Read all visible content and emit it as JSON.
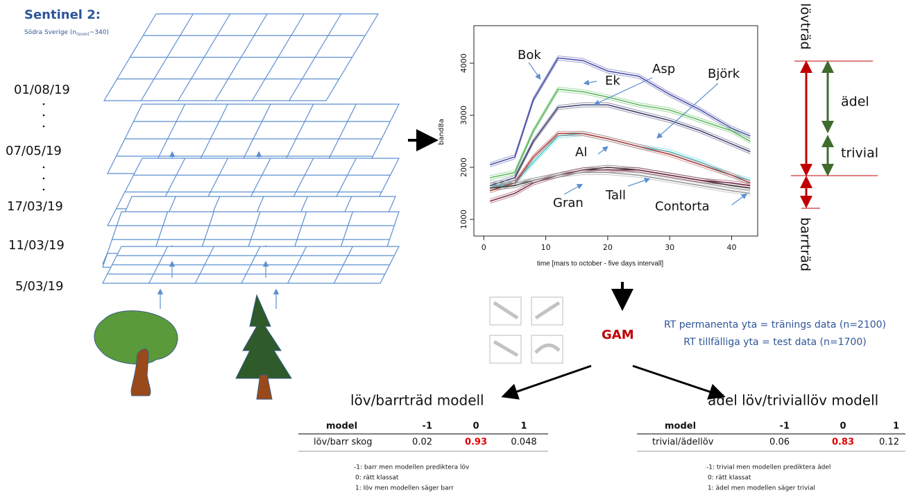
{
  "sentinel": {
    "title": "Sentinel 2:",
    "subtitle": "Södra Sverige  (n",
    "subscript": "(scen)",
    "tail": "~340)"
  },
  "dates": [
    "01/08/19",
    "07/05/19",
    "17/03/19",
    "11/03/19",
    "5/03/19"
  ],
  "chart_data": {
    "type": "line",
    "x_label": "time [mars to october - five days intervall]",
    "y_label": "band8a",
    "xlim": [
      -1.6,
      44.2
    ],
    "ylim": [
      680,
      4720
    ],
    "xticks": [
      0,
      10,
      20,
      30,
      40
    ],
    "yticks": [
      1000,
      2000,
      3000,
      4000
    ],
    "x": [
      1,
      5,
      8,
      12,
      16,
      20,
      25,
      30,
      35,
      40,
      43
    ],
    "series": [
      {
        "name": "Bok",
        "color": "#4b4fa8",
        "values": [
          2050,
          2200,
          3300,
          4100,
          4050,
          3850,
          3750,
          3400,
          3100,
          2750,
          2600
        ]
      },
      {
        "name": "Ek",
        "color": "#5cb85c",
        "values": [
          1800,
          1900,
          2700,
          3500,
          3450,
          3350,
          3200,
          3100,
          2900,
          2700,
          2500
        ]
      },
      {
        "name": "Asp",
        "color": "#3e3e6e",
        "values": [
          1650,
          1800,
          2500,
          3150,
          3200,
          3200,
          3050,
          2900,
          2700,
          2450,
          2300
        ]
      },
      {
        "name": "Björk",
        "color": "#3fd0d6",
        "values": [
          1600,
          1700,
          2100,
          2600,
          2650,
          2550,
          2400,
          2300,
          2100,
          1850,
          1750
        ]
      },
      {
        "name": "Al",
        "color": "#b23a3a",
        "values": [
          1550,
          1700,
          2200,
          2650,
          2650,
          2550,
          2400,
          2250,
          2050,
          1850,
          1700
        ]
      },
      {
        "name": "Tall",
        "color": "#333333",
        "values": [
          1600,
          1650,
          1750,
          1850,
          1950,
          2000,
          1950,
          1850,
          1750,
          1650,
          1600
        ]
      },
      {
        "name": "Gran",
        "color": "#7a2a4a",
        "values": [
          1350,
          1500,
          1700,
          1850,
          1950,
          1950,
          1950,
          1850,
          1750,
          1700,
          1650
        ]
      },
      {
        "name": "Contorta",
        "color": "#9a9a9a",
        "values": [
          1700,
          1700,
          1750,
          1850,
          1900,
          1900,
          1850,
          1750,
          1650,
          1550,
          1500
        ]
      }
    ]
  },
  "side": {
    "top": "lövträd",
    "bottom": "barrträd",
    "noble": "ädel",
    "trivial": "trivial"
  },
  "gam": {
    "label": "GAM",
    "lines": [
      "RT permanenta yta = tränings data (n=2100)",
      "RT tillfälliga yta = test data (n=1700)"
    ]
  },
  "tables": [
    {
      "title": "löv/barrträd modell",
      "header": [
        "model",
        -1,
        0,
        1
      ],
      "row": [
        "löv/barr skog",
        0.02,
        0.93,
        0.048
      ],
      "notes": [
        "-1: barr men modellen prediktera löv",
        "0: rätt klassat",
        "1: löv men  modellen säger barr"
      ]
    },
    {
      "title": "ädel löv/triviallöv modell",
      "header": [
        "model",
        -1,
        0,
        1
      ],
      "row": [
        "trivial/ädellöv",
        0.06,
        0.83,
        0.12
      ],
      "notes": [
        "-1: trivial men modellen prediktera ädel",
        "0: rätt klassat",
        "1: ädel men  modellen säger trivial"
      ]
    }
  ]
}
